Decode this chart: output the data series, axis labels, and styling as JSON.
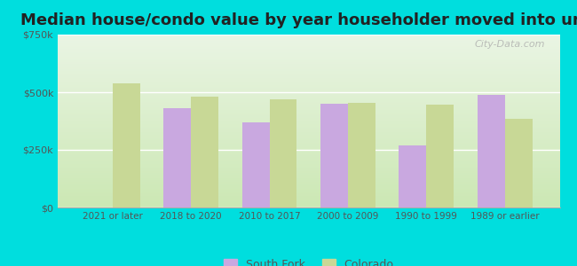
{
  "title": "Median house/condo value by year householder moved into unit",
  "categories": [
    "2021 or later",
    "2018 to 2020",
    "2010 to 2017",
    "2000 to 2009",
    "1990 to 1999",
    "1989 or earlier"
  ],
  "south_fork": [
    null,
    430000,
    370000,
    450000,
    270000,
    490000
  ],
  "colorado": [
    540000,
    480000,
    470000,
    455000,
    445000,
    385000
  ],
  "south_fork_color": "#c9a8e0",
  "colorado_color": "#c8d896",
  "background_outer": "#00dede",
  "background_inner_top": "#f0f8f0",
  "background_inner_bottom": "#d8ecd0",
  "ylim": [
    0,
    750000
  ],
  "yticks": [
    0,
    250000,
    500000,
    750000
  ],
  "ytick_labels": [
    "$0",
    "$250k",
    "$500k",
    "$750k"
  ],
  "title_fontsize": 13,
  "legend_labels": [
    "South Fork",
    "Colorado"
  ],
  "bar_width": 0.35,
  "watermark": "City-Data.com"
}
